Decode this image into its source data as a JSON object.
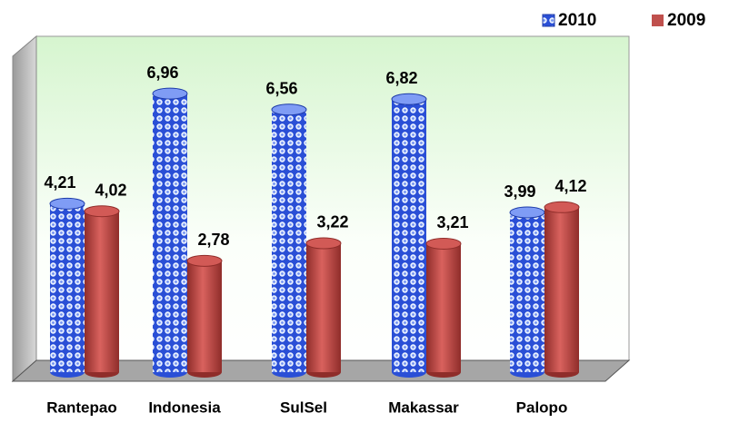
{
  "chart_data": {
    "type": "bar",
    "categories": [
      "Rantepao",
      "Indonesia",
      "SulSel",
      "Makassar",
      "Palopo"
    ],
    "series": [
      {
        "name": "2010",
        "color": "#2a4fd6",
        "values": [
          4.21,
          6.96,
          6.56,
          6.82,
          3.99
        ],
        "value_labels": [
          "4,21",
          "6,96",
          "6,56",
          "6,82",
          "3,99"
        ]
      },
      {
        "name": "2009",
        "color": "#c0504d",
        "values": [
          4.02,
          2.78,
          3.22,
          3.21,
          4.12
        ],
        "value_labels": [
          "4,02",
          "2,78",
          "3,22",
          "3,21",
          "4,12"
        ]
      }
    ],
    "legend": "top-right"
  }
}
